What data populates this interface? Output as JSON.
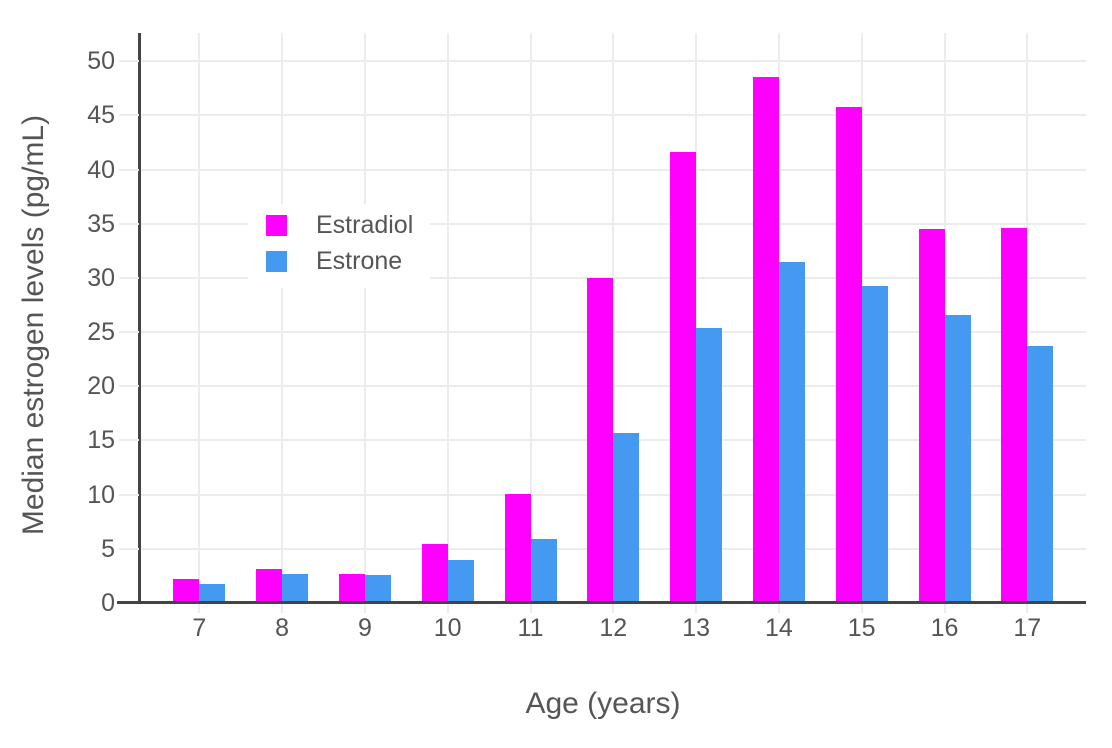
{
  "chart_data": {
    "type": "bar",
    "title": "",
    "xlabel": "Age (years)",
    "ylabel": "Median estrogen levels (pg/mL)",
    "categories": [
      "7",
      "8",
      "9",
      "10",
      "11",
      "12",
      "13",
      "14",
      "15",
      "16",
      "17"
    ],
    "series": [
      {
        "name": "Estradiol",
        "color": "#ff00ff",
        "values": [
          2.2,
          3.1,
          2.7,
          5.4,
          10.1,
          30,
          41.6,
          48.5,
          45.8,
          34.5,
          34.6
        ]
      },
      {
        "name": "Estrone",
        "color": "#4499f0",
        "values": [
          1.8,
          2.7,
          2.6,
          4,
          5.9,
          15.7,
          25.4,
          31.5,
          29.3,
          26.6,
          23.7
        ]
      }
    ],
    "ylim": [
      0,
      52.6
    ],
    "yticks": [
      0,
      5,
      10,
      15,
      20,
      25,
      30,
      35,
      40,
      45,
      50
    ],
    "grid": true,
    "legend_position": "inside-left",
    "colors": {
      "grid": "#ececec",
      "axis": "#444444",
      "text": "#555555",
      "background": "#ffffff"
    }
  }
}
